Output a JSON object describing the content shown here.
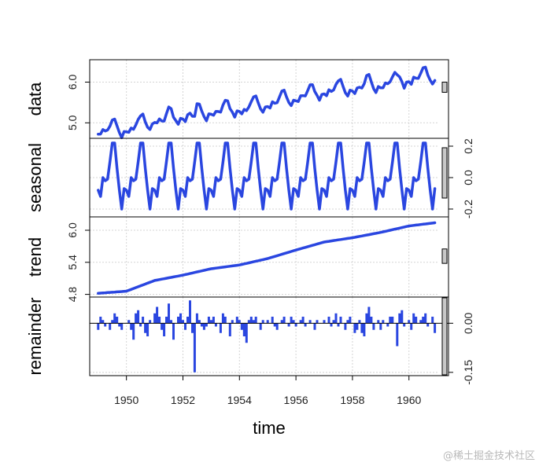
{
  "chart_data": {
    "type": "line",
    "title": "",
    "xlabel": "time",
    "x_ticks": [
      "1950",
      "1952",
      "1954",
      "1956",
      "1958",
      "1960"
    ],
    "xlim": [
      1948.7,
      1961.4
    ],
    "grid": true,
    "panels": [
      {
        "name": "data",
        "ylabel": "data",
        "ylim": [
          4.62,
          6.55
        ],
        "y_ticks": [
          "5.0",
          "6.0"
        ],
        "y_tick_values": [
          5.0,
          6.0
        ],
        "tick_side": "left",
        "range_bar": [
          5.75,
          6.0
        ],
        "start": 1949.0,
        "end": 1960.917,
        "series": "computed: trend + seasonal + remainder"
      },
      {
        "name": "seasonal",
        "ylabel": "seasonal",
        "ylim": [
          -0.25,
          0.25
        ],
        "y_ticks": [
          "-0.2",
          "0.0",
          "0.2"
        ],
        "y_tick_values": [
          -0.2,
          0.0,
          0.2
        ],
        "tick_side": "right",
        "range_bar": [
          -0.13,
          0.19
        ],
        "monthly_values": [
          -0.08,
          -0.12,
          0.0,
          -0.02,
          -0.01,
          0.1,
          0.22,
          0.22,
          0.06,
          -0.08,
          -0.2,
          -0.07
        ]
      },
      {
        "name": "trend",
        "ylabel": "trend",
        "ylim": [
          4.75,
          6.25
        ],
        "y_ticks": [
          "4.8",
          "5.4",
          "6.0"
        ],
        "y_tick_values": [
          4.8,
          5.4,
          6.0
        ],
        "tick_side": "left",
        "range_bar": [
          5.38,
          5.65
        ],
        "yearly_points": {
          "x": [
            1949,
            1950,
            1951,
            1952,
            1953,
            1954,
            1955,
            1956,
            1957,
            1958,
            1959,
            1960,
            1960.917
          ],
          "y": [
            4.82,
            4.86,
            5.06,
            5.16,
            5.28,
            5.35,
            5.47,
            5.63,
            5.78,
            5.86,
            5.96,
            6.08,
            6.14
          ]
        }
      },
      {
        "name": "remainder",
        "ylabel": "remainder",
        "ylim": [
          -0.16,
          0.08
        ],
        "y_ticks": [
          "-0.15",
          "0.00"
        ],
        "y_tick_values": [
          -0.15,
          0.0
        ],
        "tick_side": "right",
        "range_bar": [
          -0.16,
          0.08
        ],
        "values": [
          -0.02,
          0.02,
          0.01,
          -0.01,
          0.0,
          -0.02,
          0.01,
          0.03,
          0.02,
          -0.01,
          -0.02,
          0.0,
          0.0,
          0.01,
          -0.02,
          -0.05,
          0.03,
          0.04,
          -0.01,
          0.02,
          -0.03,
          -0.04,
          0.01,
          0.0,
          0.03,
          0.05,
          0.02,
          -0.02,
          -0.04,
          0.02,
          0.06,
          0.01,
          -0.05,
          0.0,
          0.02,
          0.03,
          0.01,
          -0.02,
          0.02,
          0.07,
          -0.03,
          -0.15,
          0.03,
          0.01,
          -0.01,
          -0.02,
          -0.01,
          0.02,
          0.01,
          0.02,
          -0.01,
          0.0,
          -0.03,
          0.03,
          0.02,
          0.0,
          -0.04,
          0.01,
          0.0,
          0.02,
          0.01,
          -0.02,
          -0.04,
          -0.06,
          0.01,
          0.02,
          0.01,
          0.02,
          0.0,
          -0.02,
          0.01,
          0.0,
          0.01,
          0.0,
          0.02,
          -0.01,
          -0.02,
          0.0,
          0.01,
          0.02,
          0.0,
          -0.01,
          0.02,
          0.01,
          -0.01,
          0.0,
          0.01,
          0.02,
          -0.01,
          0.0,
          0.01,
          0.0,
          -0.02,
          0.01,
          0.0,
          0.0,
          0.01,
          0.0,
          0.02,
          -0.01,
          0.01,
          0.03,
          -0.01,
          0.02,
          0.0,
          -0.02,
          0.01,
          0.02,
          0.0,
          -0.03,
          -0.02,
          0.01,
          -0.03,
          -0.04,
          0.03,
          0.05,
          0.02,
          -0.02,
          0.0,
          0.01,
          -0.02,
          0.01,
          0.0,
          -0.01,
          0.02,
          0.02,
          0.0,
          -0.07,
          0.03,
          0.04,
          -0.01,
          0.0,
          0.01,
          -0.02,
          0.03,
          0.02,
          0.0,
          0.01,
          0.02,
          0.03,
          -0.01,
          0.0,
          0.02,
          -0.03
        ]
      }
    ]
  },
  "watermark": "@稀土掘金技术社区"
}
